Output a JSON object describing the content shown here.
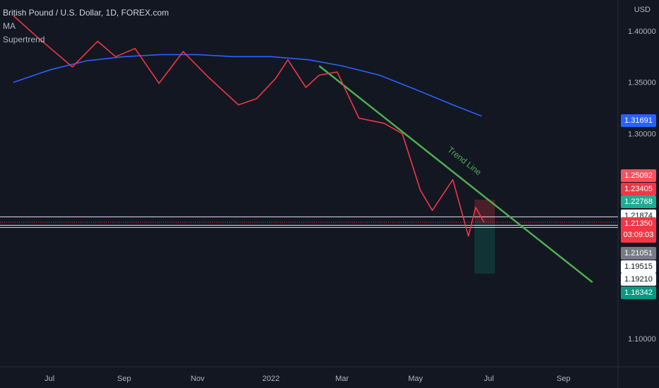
{
  "header": {
    "symbol_title": "British Pound / U.S. Dollar, 1D, FOREX.com",
    "indicators": [
      "MA",
      "Supertrend"
    ]
  },
  "axis": {
    "currency": "USD",
    "price_ticks": [
      "1.40000",
      "1.35000",
      "1.30000",
      "1.10000"
    ],
    "time_ticks": [
      "Jul",
      "Sep",
      "Nov",
      "2022",
      "Mar",
      "May",
      "Jul",
      "Sep"
    ]
  },
  "annotations": {
    "trend_line_label": "Trend Line"
  },
  "price_labels": [
    {
      "text": "1.31691",
      "bg": "#2962ff",
      "fg": "#ffffff"
    },
    {
      "text": "1.25092",
      "bg": "#f7525f",
      "fg": "#ffffff"
    },
    {
      "text": "1.23405",
      "bg": "#f23645",
      "fg": "#ffffff"
    },
    {
      "text": "1.22768",
      "bg": "#22ab94",
      "fg": "#ffffff"
    },
    {
      "text": "1.21874",
      "bg": "#ffffff",
      "fg": "#131722"
    },
    {
      "text": "1.21350",
      "sub": "03:09:03",
      "bg": "#f23645",
      "fg": "#ffffff"
    },
    {
      "text": "1.21051",
      "bg": "#787b86",
      "fg": "#ffffff"
    },
    {
      "text": "1.19515",
      "bg": "#ffffff",
      "fg": "#131722"
    },
    {
      "text": "1.19210",
      "bg": "#ffffff",
      "fg": "#131722"
    },
    {
      "text": "1.16342",
      "bg": "#089981",
      "fg": "#ffffff"
    }
  ],
  "chart_data": {
    "type": "line",
    "title": "British Pound / U.S. Dollar, 1D, FOREX.com",
    "ylabel": "USD",
    "ylim": [
      1.08,
      1.425
    ],
    "x_range": [
      "2021-05-30",
      "2022-09-30"
    ],
    "series": [
      {
        "name": "MA",
        "color": "#2962ff",
        "points": [
          [
            "2021-06-01",
            1.35
          ],
          [
            "2021-07-01",
            1.362
          ],
          [
            "2021-08-01",
            1.371
          ],
          [
            "2021-09-01",
            1.375
          ],
          [
            "2021-10-01",
            1.377
          ],
          [
            "2021-11-01",
            1.377
          ],
          [
            "2021-12-01",
            1.375
          ],
          [
            "2022-01-01",
            1.375
          ],
          [
            "2022-02-01",
            1.372
          ],
          [
            "2022-03-01",
            1.366
          ],
          [
            "2022-04-01",
            1.357
          ],
          [
            "2022-05-01",
            1.343
          ],
          [
            "2022-06-01",
            1.328
          ],
          [
            "2022-06-25",
            1.317
          ]
        ]
      },
      {
        "name": "Trend Line",
        "color": "#4caf50",
        "points": [
          [
            "2022-02-10",
            1.366
          ],
          [
            "2022-09-25",
            1.155
          ]
        ]
      },
      {
        "name": "Price",
        "color": "#f23645",
        "points": [
          [
            "2021-06-01",
            1.415
          ],
          [
            "2021-06-20",
            1.395
          ],
          [
            "2021-07-10",
            1.375
          ],
          [
            "2021-07-20",
            1.365
          ],
          [
            "2021-08-10",
            1.39
          ],
          [
            "2021-08-25",
            1.375
          ],
          [
            "2021-09-10",
            1.383
          ],
          [
            "2021-09-30",
            1.349
          ],
          [
            "2021-10-20",
            1.38
          ],
          [
            "2021-11-10",
            1.355
          ],
          [
            "2021-12-05",
            1.328
          ],
          [
            "2021-12-20",
            1.334
          ],
          [
            "2022-01-05",
            1.354
          ],
          [
            "2022-01-15",
            1.372
          ],
          [
            "2022-01-30",
            1.345
          ],
          [
            "2022-02-10",
            1.357
          ],
          [
            "2022-02-25",
            1.36
          ],
          [
            "2022-03-15",
            1.315
          ],
          [
            "2022-04-05",
            1.31
          ],
          [
            "2022-04-20",
            1.3
          ],
          [
            "2022-05-05",
            1.245
          ],
          [
            "2022-05-15",
            1.225
          ],
          [
            "2022-06-01",
            1.255
          ],
          [
            "2022-06-14",
            1.2
          ],
          [
            "2022-06-20",
            1.228
          ],
          [
            "2022-06-27",
            1.2135
          ]
        ]
      }
    ],
    "horizontal_levels": [
      1.21874,
      1.21051,
      1.2085
    ],
    "position_box": {
      "entry": 1.2135,
      "stop": 1.2355,
      "target": 1.1634,
      "from": "2022-06-19",
      "to": "2022-07-06"
    }
  }
}
